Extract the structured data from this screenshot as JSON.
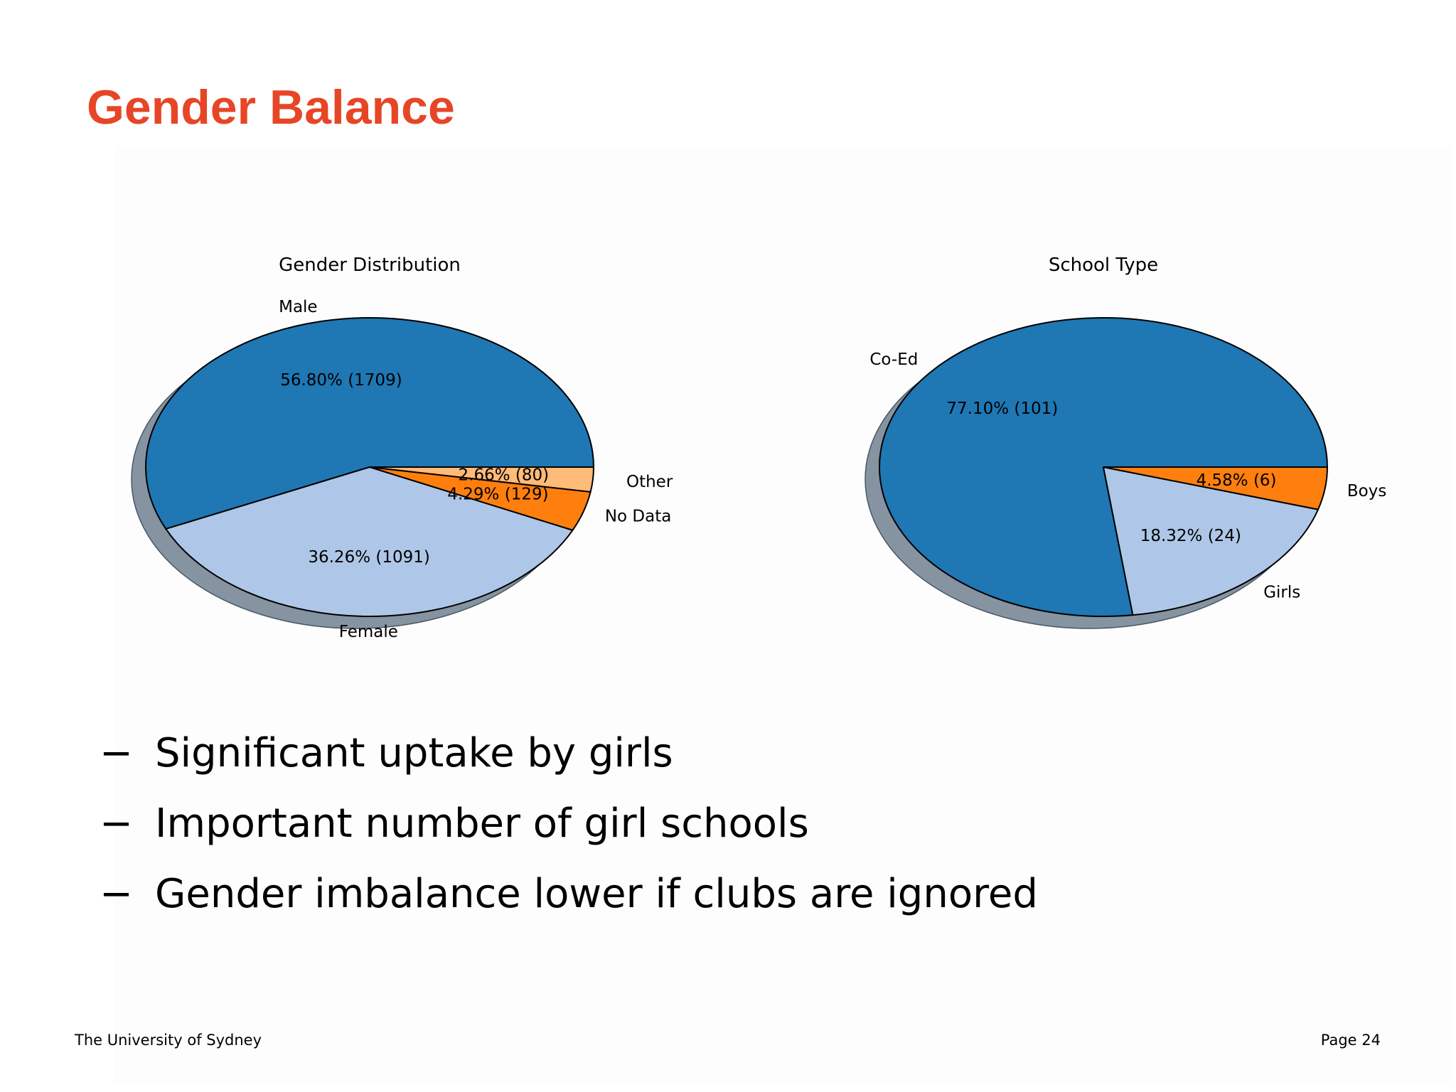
{
  "slide": {
    "title": "Gender Balance",
    "title_color": "#e64626",
    "bullet_marker": "−",
    "bullets": [
      "Significant uptake by girls",
      "Important number of girl schools",
      "Gender imbalance lower if clubs are ignored"
    ],
    "footer_left": "The University of Sydney",
    "footer_right": "Page 24"
  },
  "chart_data": [
    {
      "type": "pie",
      "title": "Gender Distribution",
      "shadow": true,
      "slices": [
        {
          "label": "Male",
          "percent_label": "56.80%  (1709)",
          "value": 1709,
          "color": "#1f77b4"
        },
        {
          "label": "Female",
          "percent_label": "36.26%  (1091)",
          "value": 1091,
          "color": "#aec7e8"
        },
        {
          "label": "No Data",
          "percent_label": "4.29%  (129)",
          "value": 129,
          "color": "#ff7f0e"
        },
        {
          "label": "Other",
          "percent_label": "2.66%  (80)",
          "value": 80,
          "color": "#ffbb78"
        }
      ]
    },
    {
      "type": "pie",
      "title": "School Type",
      "shadow": true,
      "slices": [
        {
          "label": "Co-Ed",
          "percent_label": "77.10%  (101)",
          "value": 101,
          "color": "#1f77b4"
        },
        {
          "label": "Girls",
          "percent_label": "18.32%  (24)",
          "value": 24,
          "color": "#aec7e8"
        },
        {
          "label": "Boys",
          "percent_label": "4.58%  (6)",
          "value": 6,
          "color": "#ff7f0e"
        }
      ]
    }
  ]
}
